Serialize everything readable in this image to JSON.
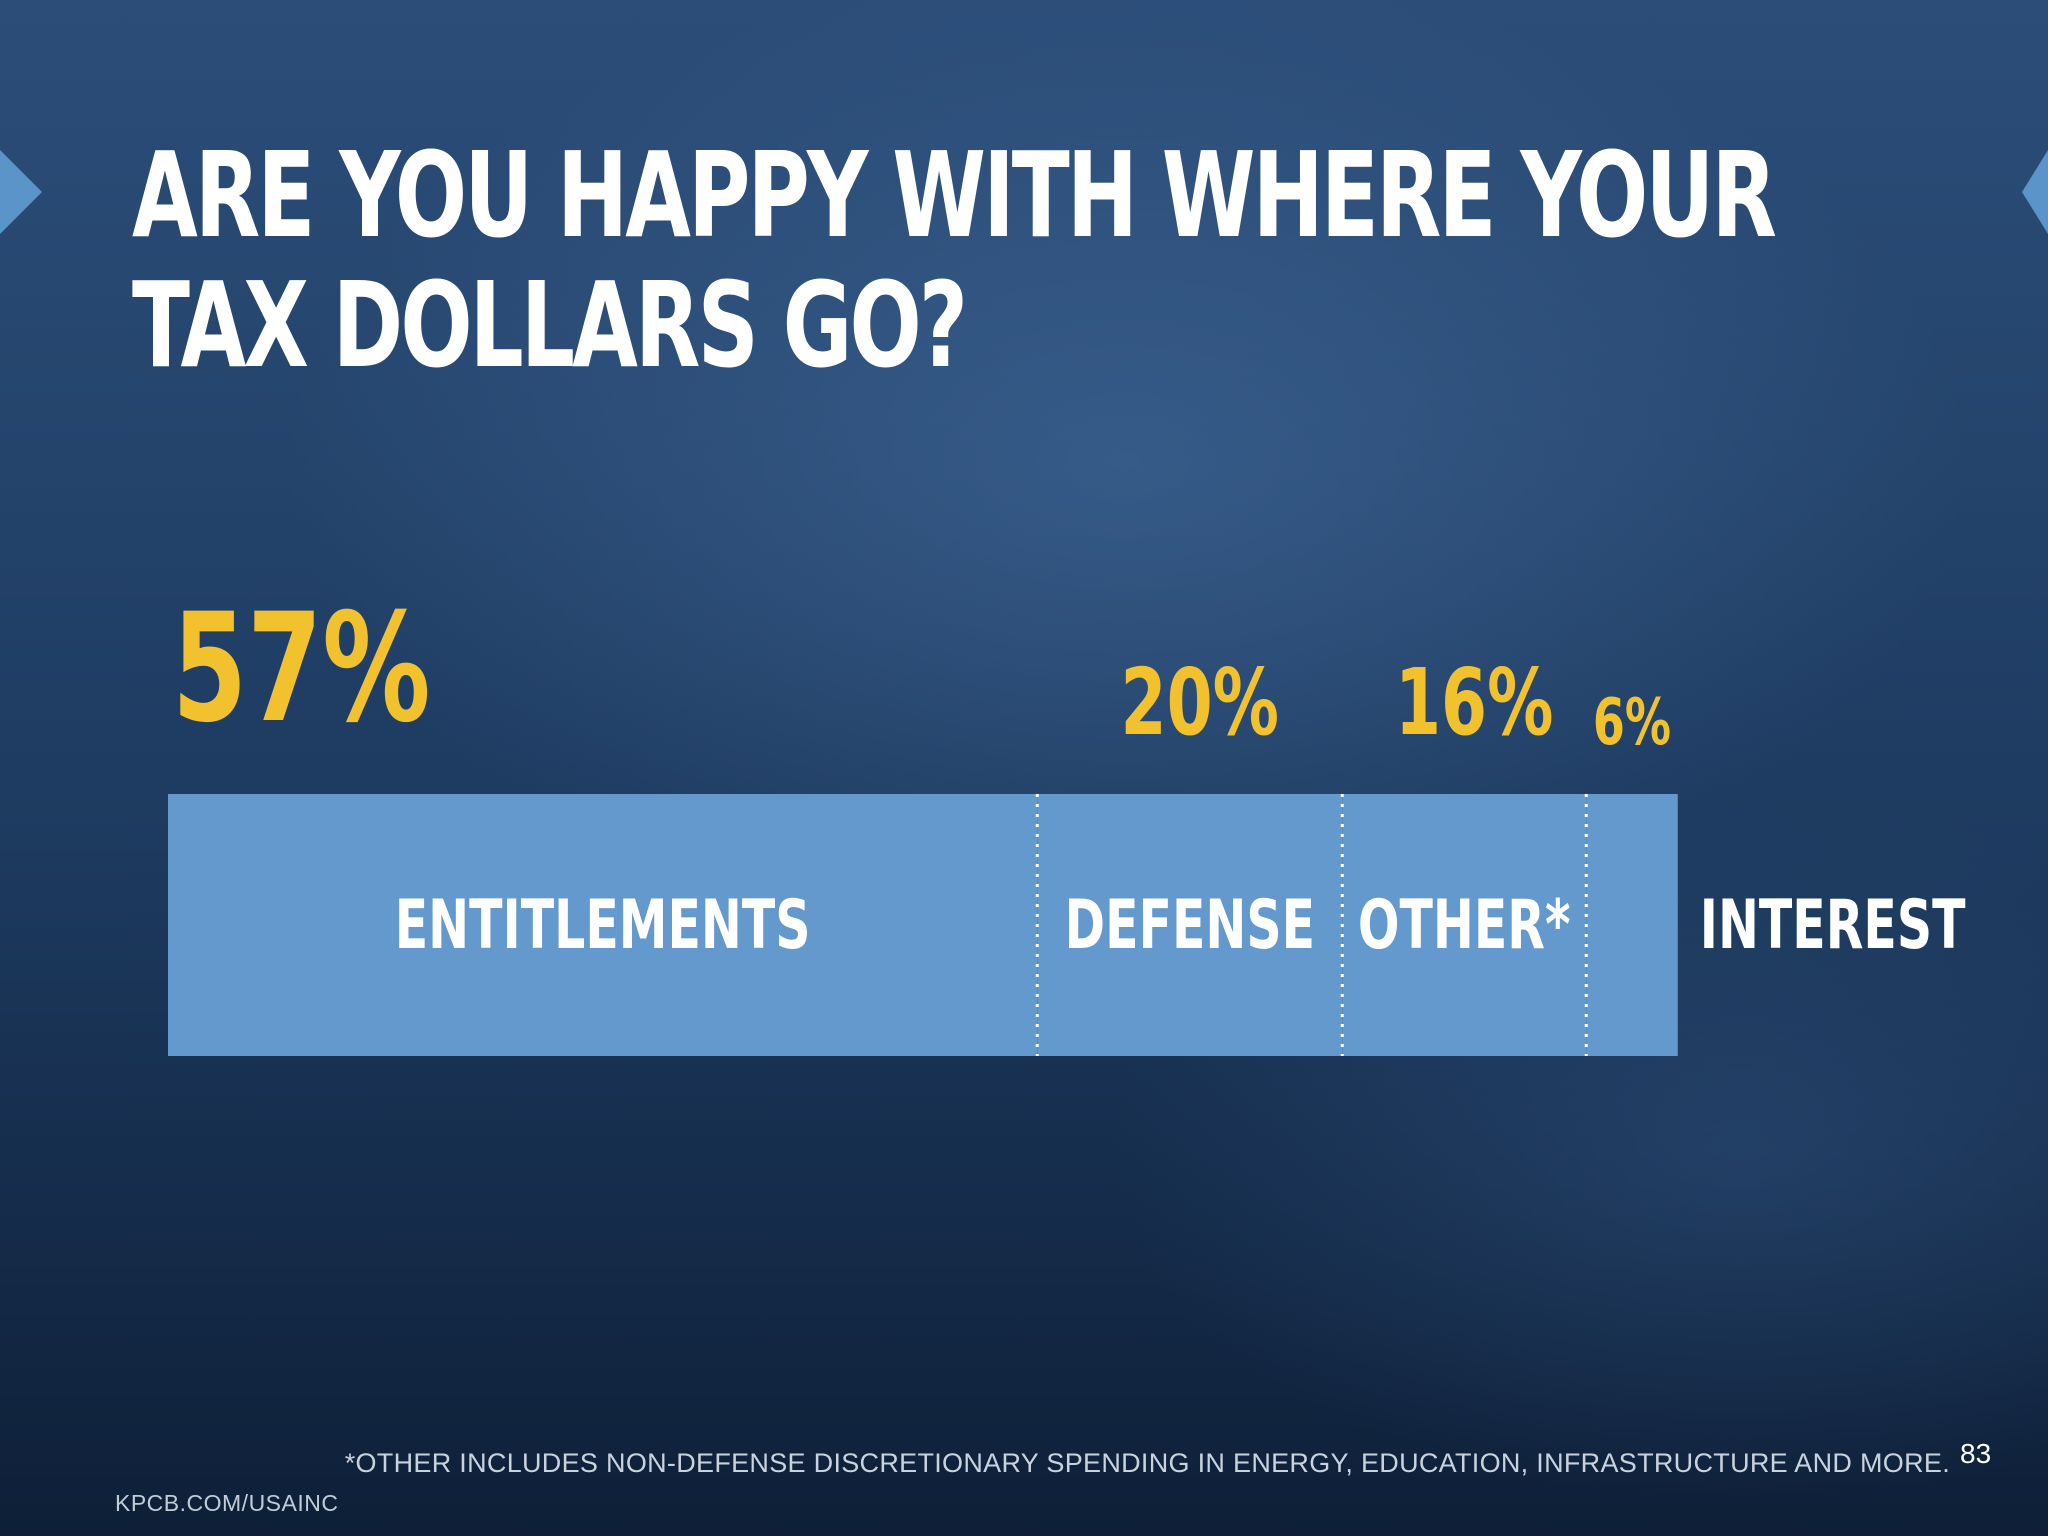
{
  "slide": {
    "title_line1": "ARE YOU HAPPY WITH WHERE YOUR",
    "title_line2": "TAX DOLLARS GO?",
    "footnote": "*OTHER INCLUDES NON-DEFENSE DISCRETIONARY SPENDING IN ENERGY, EDUCATION, INFRASTRUCTURE AND MORE.",
    "page_number": "83",
    "source": "KPCB.COM/USAINC"
  },
  "chart_data": {
    "type": "bar",
    "orientation": "horizontal-stacked",
    "title": "",
    "categories": [
      "ENTITLEMENTS",
      "DEFENSE",
      "OTHER*",
      "INTEREST"
    ],
    "values": [
      57,
      20,
      16,
      6
    ],
    "value_labels": [
      "57%",
      "20%",
      "16%",
      "6%"
    ],
    "unit": "%",
    "separators": "dotted",
    "legend": "none",
    "grid": false
  },
  "colors": {
    "bar_fill": "#6399cc",
    "percent_label": "#f2c12e",
    "category_label": "#ffffff",
    "separator": "#ffffff"
  }
}
